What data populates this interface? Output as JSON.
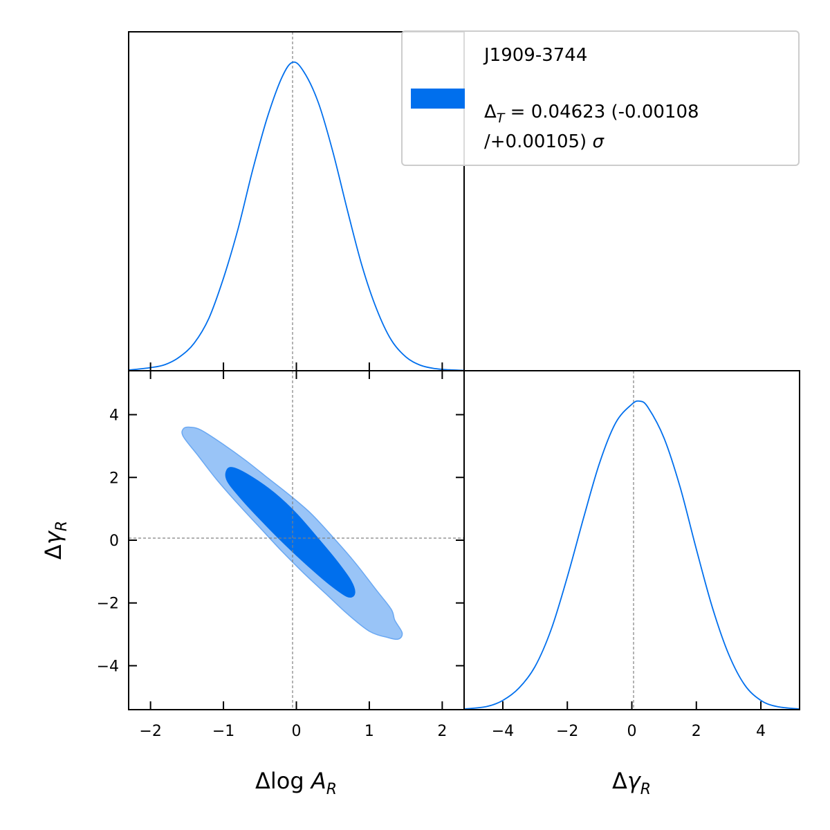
{
  "chart_data": [
    {
      "type": "line",
      "panel": "top-left marginal",
      "x": [
        -2.3,
        -2.0,
        -1.8,
        -1.6,
        -1.4,
        -1.2,
        -1.0,
        -0.8,
        -0.6,
        -0.4,
        -0.2,
        -0.05,
        0.1,
        0.3,
        0.5,
        0.7,
        0.9,
        1.1,
        1.3,
        1.5,
        1.7,
        1.9,
        2.1,
        2.3
      ],
      "y": [
        0.002,
        0.01,
        0.02,
        0.045,
        0.09,
        0.17,
        0.3,
        0.46,
        0.65,
        0.82,
        0.95,
        1.0,
        0.97,
        0.87,
        0.71,
        0.52,
        0.34,
        0.2,
        0.1,
        0.045,
        0.018,
        0.007,
        0.003,
        0.001
      ],
      "xlim": [
        -2.3,
        2.3
      ],
      "xticks": [
        "−2",
        "−1",
        "0",
        "1",
        "2"
      ],
      "reference_line_x": 0,
      "color": "#006fed"
    },
    {
      "type": "contour",
      "panel": "bottom-left joint",
      "xlabel": "Δlog A_R",
      "ylabel": "Δγ_R",
      "xlim": [
        -2.3,
        2.3
      ],
      "ylim": [
        -5.4,
        5.4
      ],
      "xticks": [
        "−2",
        "−1",
        "0",
        "1",
        "2"
      ],
      "yticks": [
        "−4",
        "−2",
        "0",
        "2",
        "4"
      ],
      "reference_lines": {
        "x": 0,
        "y": 0
      },
      "contours": [
        {
          "level": "outer",
          "color": "#99c4f7",
          "points": [
            [
              -1.55,
              3.55
            ],
            [
              -1.45,
              3.6
            ],
            [
              -1.3,
              3.5
            ],
            [
              -1.0,
              3.05
            ],
            [
              -0.7,
              2.55
            ],
            [
              -0.4,
              2.0
            ],
            [
              -0.1,
              1.45
            ],
            [
              0.2,
              0.85
            ],
            [
              0.5,
              0.1
            ],
            [
              0.8,
              -0.7
            ],
            [
              1.1,
              -1.6
            ],
            [
              1.3,
              -2.2
            ],
            [
              1.35,
              -2.55
            ],
            [
              1.45,
              -2.95
            ],
            [
              1.4,
              -3.15
            ],
            [
              1.25,
              -3.1
            ],
            [
              1.0,
              -2.9
            ],
            [
              0.7,
              -2.35
            ],
            [
              0.4,
              -1.7
            ],
            [
              0.1,
              -1.05
            ],
            [
              -0.2,
              -0.35
            ],
            [
              -0.5,
              0.4
            ],
            [
              -0.8,
              1.15
            ],
            [
              -1.1,
              1.95
            ],
            [
              -1.35,
              2.7
            ],
            [
              -1.55,
              3.3
            ]
          ]
        },
        {
          "level": "inner",
          "color": "#006fed",
          "points": [
            [
              -0.95,
              2.25
            ],
            [
              -0.85,
              2.3
            ],
            [
              -0.6,
              2.0
            ],
            [
              -0.3,
              1.5
            ],
            [
              0.0,
              0.85
            ],
            [
              0.3,
              0.05
            ],
            [
              0.55,
              -0.65
            ],
            [
              0.75,
              -1.3
            ],
            [
              0.8,
              -1.7
            ],
            [
              0.7,
              -1.8
            ],
            [
              0.45,
              -1.4
            ],
            [
              0.15,
              -0.8
            ],
            [
              -0.15,
              -0.15
            ],
            [
              -0.45,
              0.55
            ],
            [
              -0.75,
              1.3
            ],
            [
              -0.95,
              1.9
            ]
          ]
        }
      ]
    },
    {
      "type": "line",
      "panel": "bottom-right marginal",
      "xlabel": "Δγ_R",
      "x": [
        -5.2,
        -4.5,
        -4.0,
        -3.5,
        -3.0,
        -2.5,
        -2.0,
        -1.5,
        -1.0,
        -0.5,
        0.0,
        0.25,
        0.5,
        1.0,
        1.5,
        2.0,
        2.5,
        3.0,
        3.5,
        4.0,
        4.5,
        5.2
      ],
      "y": [
        0.002,
        0.01,
        0.03,
        0.07,
        0.14,
        0.26,
        0.43,
        0.62,
        0.8,
        0.93,
        0.99,
        1.0,
        0.98,
        0.88,
        0.72,
        0.52,
        0.33,
        0.18,
        0.08,
        0.03,
        0.01,
        0.002
      ],
      "xlim": [
        -5.2,
        5.2
      ],
      "xticks": [
        "−4",
        "−2",
        "0",
        "2",
        "4"
      ],
      "reference_line_x": 0,
      "color": "#006fed"
    }
  ],
  "legend": {
    "title": "J1909-3744",
    "line1_prefix": "Δ",
    "line1_sub": "T",
    "line1_rest": " = 0.04623 (-0.00108",
    "line2_main": "/+0.00105) ",
    "line2_sigma": "σ",
    "swatch_color": "#006fed"
  },
  "labels": {
    "x_left_main": "Δlog ",
    "x_left_var": "A",
    "x_left_sub": "R",
    "x_right_main": "Δ",
    "x_right_var": "γ",
    "x_right_sub": "R",
    "y_main": "Δ",
    "y_var": "γ",
    "y_sub": "R"
  }
}
